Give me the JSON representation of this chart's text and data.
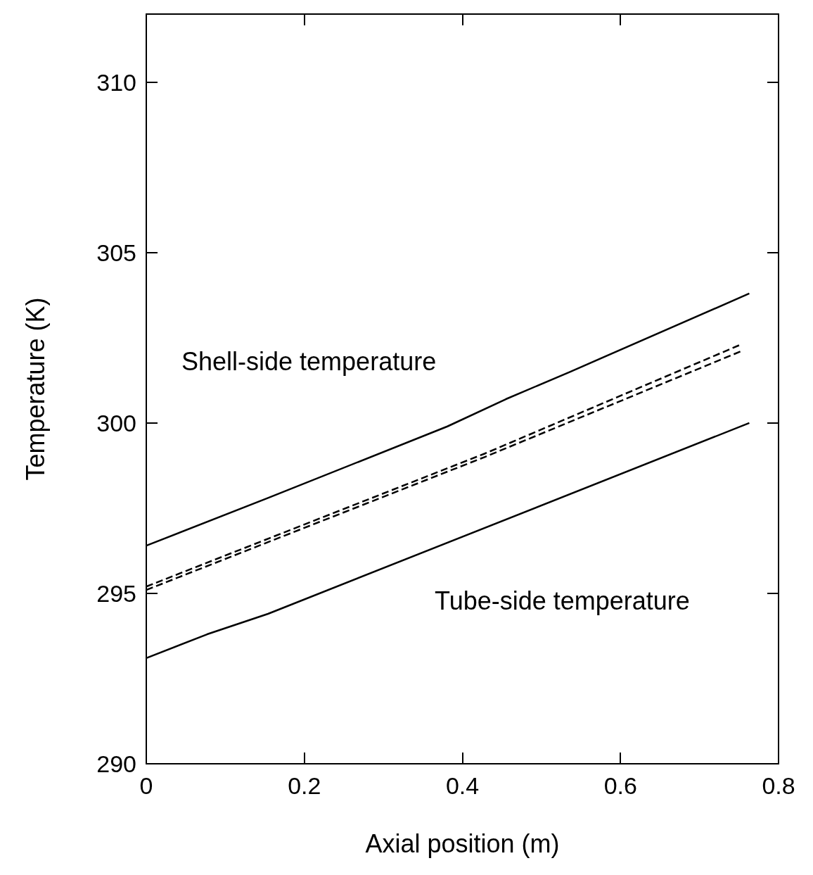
{
  "chart_data": {
    "type": "line",
    "xlabel": "Axial position (m)",
    "ylabel": "Temperature (K)",
    "xlim": [
      0,
      0.8
    ],
    "xticks": [
      0,
      0.2,
      0.4,
      0.6,
      0.8
    ],
    "ylim": [
      290,
      312
    ],
    "yticks": [
      290,
      295,
      300,
      305,
      310
    ],
    "marker": "none",
    "series": [
      {
        "color": "#000000",
        "line_style": "solid",
        "x": [
          0,
          0.154,
          0.381,
          0.455,
          0.536,
          0.763
        ],
        "values": [
          296.4,
          297.8,
          299.9,
          300.7,
          301.5,
          303.8
        ]
      },
      {
        "color": "#000000",
        "line_style": "dashed",
        "x": [
          0,
          0.428,
          0.752
        ],
        "values": [
          295.2,
          299.1,
          302.3
        ]
      },
      {
        "color": "#000000",
        "line_style": "dashed",
        "x": [
          0,
          0.428,
          0.752
        ],
        "values": [
          295.1,
          299.0,
          302.1
        ]
      },
      {
        "color": "#000000",
        "line_style": "solid",
        "x": [
          0,
          0.077,
          0.154,
          0.763
        ],
        "values": [
          293.1,
          293.8,
          294.4,
          300.0
        ]
      }
    ],
    "annotations": [
      "Shell-side temperature",
      "Tube-side temperature"
    ]
  }
}
